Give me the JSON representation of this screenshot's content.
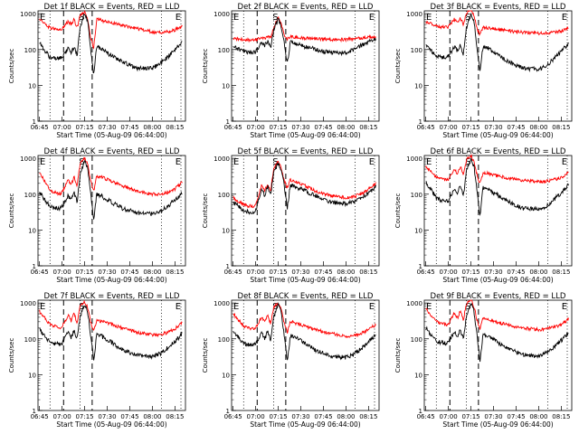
{
  "figure": {
    "background": "#ffffff",
    "events_color": "#000000",
    "lld_color": "#ff0000"
  },
  "chart_data": [
    {
      "type": "line",
      "title": "Det 1f BLACK = Events, RED = LLD",
      "xlabel": "Start Time (05-Aug-09 06:44:00)",
      "ylabel": "Counts/sec",
      "x_ticks": [
        "06:45",
        "07:00",
        "07:15",
        "07:30",
        "07:45",
        "08:00",
        "08:15"
      ],
      "y_ticks": [
        "1",
        "10",
        "100",
        "1000"
      ],
      "y_scale": "log",
      "ylim": [
        1,
        1200
      ],
      "xlim": [
        "06:44",
        "08:22"
      ],
      "markers": [
        "E",
        "S",
        "E"
      ],
      "x": [
        "06:45",
        "06:52",
        "06:58",
        "07:00",
        "07:04",
        "07:06",
        "07:08",
        "07:10",
        "07:12",
        "07:15",
        "07:17",
        "07:19",
        "07:21",
        "07:23",
        "07:26",
        "07:30",
        "07:40",
        "07:50",
        "08:00",
        "08:05",
        "08:10",
        "08:15",
        "08:20"
      ],
      "series": [
        {
          "name": "LLD",
          "color": "#ff0000",
          "values": [
            700,
            400,
            350,
            380,
            600,
            500,
            700,
            400,
            900,
            1100,
            700,
            220,
            110,
            700,
            650,
            600,
            480,
            380,
            310,
            300,
            310,
            350,
            450
          ]
        },
        {
          "name": "Events",
          "color": "#000000",
          "values": [
            150,
            60,
            55,
            60,
            110,
            80,
            120,
            70,
            400,
            1000,
            600,
            110,
            20,
            120,
            110,
            80,
            45,
            30,
            30,
            40,
            60,
            100,
            170
          ]
        }
      ]
    },
    {
      "type": "line",
      "title": "Det 2f BLACK = Events, RED = LLD",
      "xlabel": "Start Time (05-Aug-09 06:44:00)",
      "ylabel": "Counts/sec",
      "x_ticks": [
        "06:45",
        "07:00",
        "07:15",
        "07:30",
        "07:45",
        "08:00",
        "08:15"
      ],
      "y_ticks": [
        "1",
        "10",
        "100",
        "1000"
      ],
      "y_scale": "log",
      "ylim": [
        1,
        1200
      ],
      "xlim": [
        "06:44",
        "08:22"
      ],
      "markers": [
        "E",
        "S",
        "E"
      ],
      "x": [
        "06:45",
        "06:52",
        "06:58",
        "07:00",
        "07:04",
        "07:06",
        "07:08",
        "07:10",
        "07:12",
        "07:15",
        "07:17",
        "07:19",
        "07:21",
        "07:23",
        "07:26",
        "07:30",
        "07:40",
        "07:50",
        "08:00",
        "08:05",
        "08:10",
        "08:15",
        "08:20"
      ],
      "series": [
        {
          "name": "LLD",
          "color": "#ff0000",
          "values": [
            200,
            190,
            180,
            190,
            220,
            200,
            240,
            210,
            400,
            800,
            500,
            250,
            200,
            230,
            220,
            210,
            200,
            190,
            190,
            200,
            210,
            220,
            230
          ]
        },
        {
          "name": "Events",
          "color": "#000000",
          "values": [
            120,
            90,
            80,
            85,
            160,
            130,
            170,
            110,
            350,
            700,
            450,
            150,
            40,
            160,
            150,
            130,
            100,
            80,
            80,
            100,
            130,
            160,
            190
          ]
        }
      ]
    },
    {
      "type": "line",
      "title": "Det 3f BLACK = Events, RED = LLD",
      "xlabel": "Start Time (05-Aug-09 06:44:00)",
      "ylabel": "Counts/sec",
      "x_ticks": [
        "06:45",
        "07:00",
        "07:15",
        "07:30",
        "07:45",
        "08:00",
        "08:15"
      ],
      "y_ticks": [
        "1",
        "10",
        "100",
        "1000"
      ],
      "y_scale": "log",
      "ylim": [
        1,
        1200
      ],
      "xlim": [
        "06:44",
        "08:22"
      ],
      "markers": [
        "E",
        "S",
        "E"
      ],
      "x": [
        "06:45",
        "06:52",
        "06:58",
        "07:00",
        "07:04",
        "07:06",
        "07:08",
        "07:10",
        "07:12",
        "07:15",
        "07:17",
        "07:19",
        "07:21",
        "07:23",
        "07:26",
        "07:30",
        "07:40",
        "07:50",
        "08:00",
        "08:05",
        "08:10",
        "08:15",
        "08:20"
      ],
      "series": [
        {
          "name": "LLD",
          "color": "#ff0000",
          "values": [
            600,
            450,
            420,
            430,
            700,
            550,
            750,
            500,
            1000,
            1300,
            900,
            400,
            250,
            420,
            400,
            380,
            330,
            300,
            280,
            290,
            300,
            330,
            420
          ]
        },
        {
          "name": "Events",
          "color": "#000000",
          "values": [
            130,
            65,
            60,
            65,
            120,
            90,
            130,
            75,
            420,
            1000,
            600,
            120,
            25,
            120,
            110,
            85,
            45,
            30,
            28,
            35,
            55,
            90,
            150
          ]
        }
      ]
    },
    {
      "type": "line",
      "title": "Det 4f BLACK = Events, RED = LLD",
      "xlabel": "Start Time (05-Aug-09 06:44:00)",
      "ylabel": "Counts/sec",
      "x_ticks": [
        "06:45",
        "07:00",
        "07:15",
        "07:30",
        "07:45",
        "08:00",
        "08:15"
      ],
      "y_ticks": [
        "1",
        "10",
        "100",
        "1000"
      ],
      "y_scale": "log",
      "ylim": [
        1,
        1200
      ],
      "xlim": [
        "06:44",
        "08:22"
      ],
      "markers": [
        "E",
        "S",
        "E"
      ],
      "x": [
        "06:45",
        "06:52",
        "06:58",
        "07:00",
        "07:04",
        "07:06",
        "07:08",
        "07:10",
        "07:12",
        "07:15",
        "07:17",
        "07:19",
        "07:21",
        "07:23",
        "07:26",
        "07:30",
        "07:40",
        "07:50",
        "08:00",
        "08:05",
        "08:10",
        "08:15",
        "08:20"
      ],
      "series": [
        {
          "name": "LLD",
          "color": "#ff0000",
          "values": [
            400,
            130,
            100,
            110,
            250,
            180,
            300,
            170,
            700,
            1000,
            700,
            230,
            120,
            320,
            300,
            260,
            170,
            120,
            100,
            100,
            110,
            140,
            220
          ]
        },
        {
          "name": "Events",
          "color": "#000000",
          "values": [
            110,
            45,
            40,
            45,
            90,
            70,
            110,
            60,
            350,
            900,
            550,
            100,
            20,
            100,
            90,
            70,
            40,
            30,
            28,
            32,
            45,
            70,
            110
          ]
        }
      ]
    },
    {
      "type": "line",
      "title": "Det 5f BLACK = Events, RED = LLD",
      "xlabel": "Start Time (05-Aug-09 06:44:00)",
      "ylabel": "Counts/sec",
      "x_ticks": [
        "06:45",
        "07:00",
        "07:15",
        "07:30",
        "07:45",
        "08:00",
        "08:15"
      ],
      "y_ticks": [
        "1",
        "10",
        "100",
        "1000"
      ],
      "y_scale": "log",
      "ylim": [
        1,
        1200
      ],
      "xlim": [
        "06:44",
        "08:22"
      ],
      "markers": [
        "E",
        "S",
        "E"
      ],
      "x": [
        "06:45",
        "06:52",
        "06:58",
        "07:00",
        "07:04",
        "07:06",
        "07:08",
        "07:10",
        "07:12",
        "07:15",
        "07:17",
        "07:19",
        "07:21",
        "07:23",
        "07:26",
        "07:30",
        "07:40",
        "07:50",
        "08:00",
        "08:05",
        "08:10",
        "08:15",
        "08:20"
      ],
      "series": [
        {
          "name": "LLD",
          "color": "#ff0000",
          "values": [
            80,
            50,
            45,
            50,
            180,
            120,
            200,
            120,
            550,
            800,
            550,
            230,
            150,
            250,
            230,
            200,
            120,
            90,
            80,
            85,
            100,
            140,
            200
          ]
        },
        {
          "name": "Events",
          "color": "#000000",
          "values": [
            60,
            35,
            30,
            35,
            140,
            90,
            160,
            90,
            450,
            700,
            480,
            180,
            40,
            180,
            160,
            140,
            90,
            60,
            55,
            60,
            75,
            110,
            160
          ]
        }
      ]
    },
    {
      "type": "line",
      "title": "Det 6f BLACK = Events, RED = LLD",
      "xlabel": "Start Time (05-Aug-09 06:44:00)",
      "ylabel": "Counts/sec",
      "x_ticks": [
        "06:45",
        "07:00",
        "07:15",
        "07:30",
        "07:45",
        "08:00",
        "08:15"
      ],
      "y_ticks": [
        "1",
        "10",
        "100",
        "1000"
      ],
      "y_scale": "log",
      "ylim": [
        1,
        1200
      ],
      "xlim": [
        "06:44",
        "08:22"
      ],
      "markers": [
        "E",
        "S",
        "E"
      ],
      "x": [
        "06:45",
        "06:52",
        "06:58",
        "07:00",
        "07:04",
        "07:06",
        "07:08",
        "07:10",
        "07:12",
        "07:15",
        "07:17",
        "07:19",
        "07:21",
        "07:23",
        "07:26",
        "07:30",
        "07:40",
        "07:50",
        "08:00",
        "08:05",
        "08:10",
        "08:15",
        "08:20"
      ],
      "series": [
        {
          "name": "LLD",
          "color": "#ff0000",
          "values": [
            600,
            300,
            250,
            260,
            500,
            380,
            600,
            350,
            900,
            1200,
            800,
            350,
            200,
            400,
            380,
            340,
            280,
            240,
            220,
            230,
            250,
            290,
            400
          ]
        },
        {
          "name": "Events",
          "color": "#000000",
          "values": [
            220,
            80,
            60,
            65,
            150,
            110,
            170,
            90,
            450,
            1000,
            600,
            130,
            25,
            150,
            140,
            110,
            60,
            40,
            38,
            45,
            70,
            110,
            180
          ]
        }
      ]
    },
    {
      "type": "line",
      "title": "Det 7f BLACK = Events, RED = LLD",
      "xlabel": "Start Time (05-Aug-09 06:44:00)",
      "ylabel": "Counts/sec",
      "x_ticks": [
        "06:45",
        "07:00",
        "07:15",
        "07:30",
        "07:45",
        "08:00",
        "08:15"
      ],
      "y_ticks": [
        "1",
        "10",
        "100",
        "1000"
      ],
      "y_scale": "log",
      "ylim": [
        1,
        1200
      ],
      "xlim": [
        "06:44",
        "08:22"
      ],
      "markers": [
        "E",
        "S",
        "E"
      ],
      "x": [
        "06:45",
        "06:52",
        "06:58",
        "07:00",
        "07:04",
        "07:06",
        "07:08",
        "07:10",
        "07:12",
        "07:15",
        "07:17",
        "07:19",
        "07:21",
        "07:23",
        "07:26",
        "07:30",
        "07:40",
        "07:50",
        "08:00",
        "08:05",
        "08:10",
        "08:15",
        "08:20"
      ],
      "series": [
        {
          "name": "LLD",
          "color": "#ff0000",
          "values": [
            600,
            250,
            200,
            220,
            450,
            320,
            500,
            280,
            850,
            1100,
            750,
            300,
            160,
            330,
            310,
            280,
            200,
            150,
            130,
            130,
            150,
            190,
            280
          ]
        },
        {
          "name": "Events",
          "color": "#000000",
          "values": [
            180,
            80,
            70,
            75,
            150,
            110,
            170,
            95,
            420,
            950,
            580,
            130,
            25,
            130,
            120,
            95,
            50,
            35,
            32,
            38,
            55,
            85,
            140
          ]
        }
      ]
    },
    {
      "type": "line",
      "title": "Det 8f BLACK = Events, RED = LLD",
      "xlabel": "Start Time (05-Aug-09 06:44:00)",
      "ylabel": "Counts/sec",
      "x_ticks": [
        "06:45",
        "07:00",
        "07:15",
        "07:30",
        "07:45",
        "08:00",
        "08:15"
      ],
      "y_ticks": [
        "1",
        "10",
        "100",
        "1000"
      ],
      "y_scale": "log",
      "ylim": [
        1,
        1200
      ],
      "xlim": [
        "06:44",
        "08:22"
      ],
      "markers": [
        "E",
        "S",
        "E"
      ],
      "x": [
        "06:45",
        "06:52",
        "06:58",
        "07:00",
        "07:04",
        "07:06",
        "07:08",
        "07:10",
        "07:12",
        "07:15",
        "07:17",
        "07:19",
        "07:21",
        "07:23",
        "07:26",
        "07:30",
        "07:40",
        "07:50",
        "08:00",
        "08:05",
        "08:10",
        "08:15",
        "08:20"
      ],
      "series": [
        {
          "name": "LLD",
          "color": "#ff0000",
          "values": [
            500,
            230,
            190,
            200,
            400,
            290,
            450,
            260,
            800,
            1000,
            700,
            280,
            150,
            300,
            280,
            250,
            180,
            140,
            120,
            120,
            140,
            180,
            260
          ]
        },
        {
          "name": "Events",
          "color": "#000000",
          "values": [
            170,
            75,
            65,
            70,
            140,
            100,
            160,
            90,
            400,
            900,
            560,
            120,
            22,
            120,
            110,
            90,
            48,
            33,
            30,
            36,
            52,
            80,
            130
          ]
        }
      ]
    },
    {
      "type": "line",
      "title": "Det 9f BLACK = Events, RED = LLD",
      "xlabel": "Start Time (05-Aug-09 06:44:00)",
      "ylabel": "Counts/sec",
      "x_ticks": [
        "06:45",
        "07:00",
        "07:15",
        "07:30",
        "07:45",
        "08:00",
        "08:15"
      ],
      "y_ticks": [
        "1",
        "10",
        "100",
        "1000"
      ],
      "y_scale": "log",
      "ylim": [
        1,
        1200
      ],
      "xlim": [
        "06:44",
        "08:22"
      ],
      "markers": [
        "E",
        "S",
        "E"
      ],
      "x": [
        "06:45",
        "06:52",
        "06:58",
        "07:00",
        "07:04",
        "07:06",
        "07:08",
        "07:10",
        "07:12",
        "07:15",
        "07:17",
        "07:19",
        "07:21",
        "07:23",
        "07:26",
        "07:30",
        "07:40",
        "07:50",
        "08:00",
        "08:05",
        "08:10",
        "08:15",
        "08:20"
      ],
      "series": [
        {
          "name": "LLD",
          "color": "#ff0000",
          "values": [
            700,
            300,
            250,
            260,
            520,
            380,
            600,
            340,
            950,
            1200,
            800,
            350,
            190,
            360,
            340,
            310,
            240,
            200,
            180,
            190,
            210,
            250,
            360
          ]
        },
        {
          "name": "Events",
          "color": "#000000",
          "values": [
            200,
            85,
            75,
            80,
            160,
            115,
            180,
            100,
            430,
            1000,
            600,
            130,
            25,
            130,
            120,
            95,
            52,
            36,
            33,
            40,
            58,
            90,
            150
          ]
        }
      ]
    }
  ]
}
